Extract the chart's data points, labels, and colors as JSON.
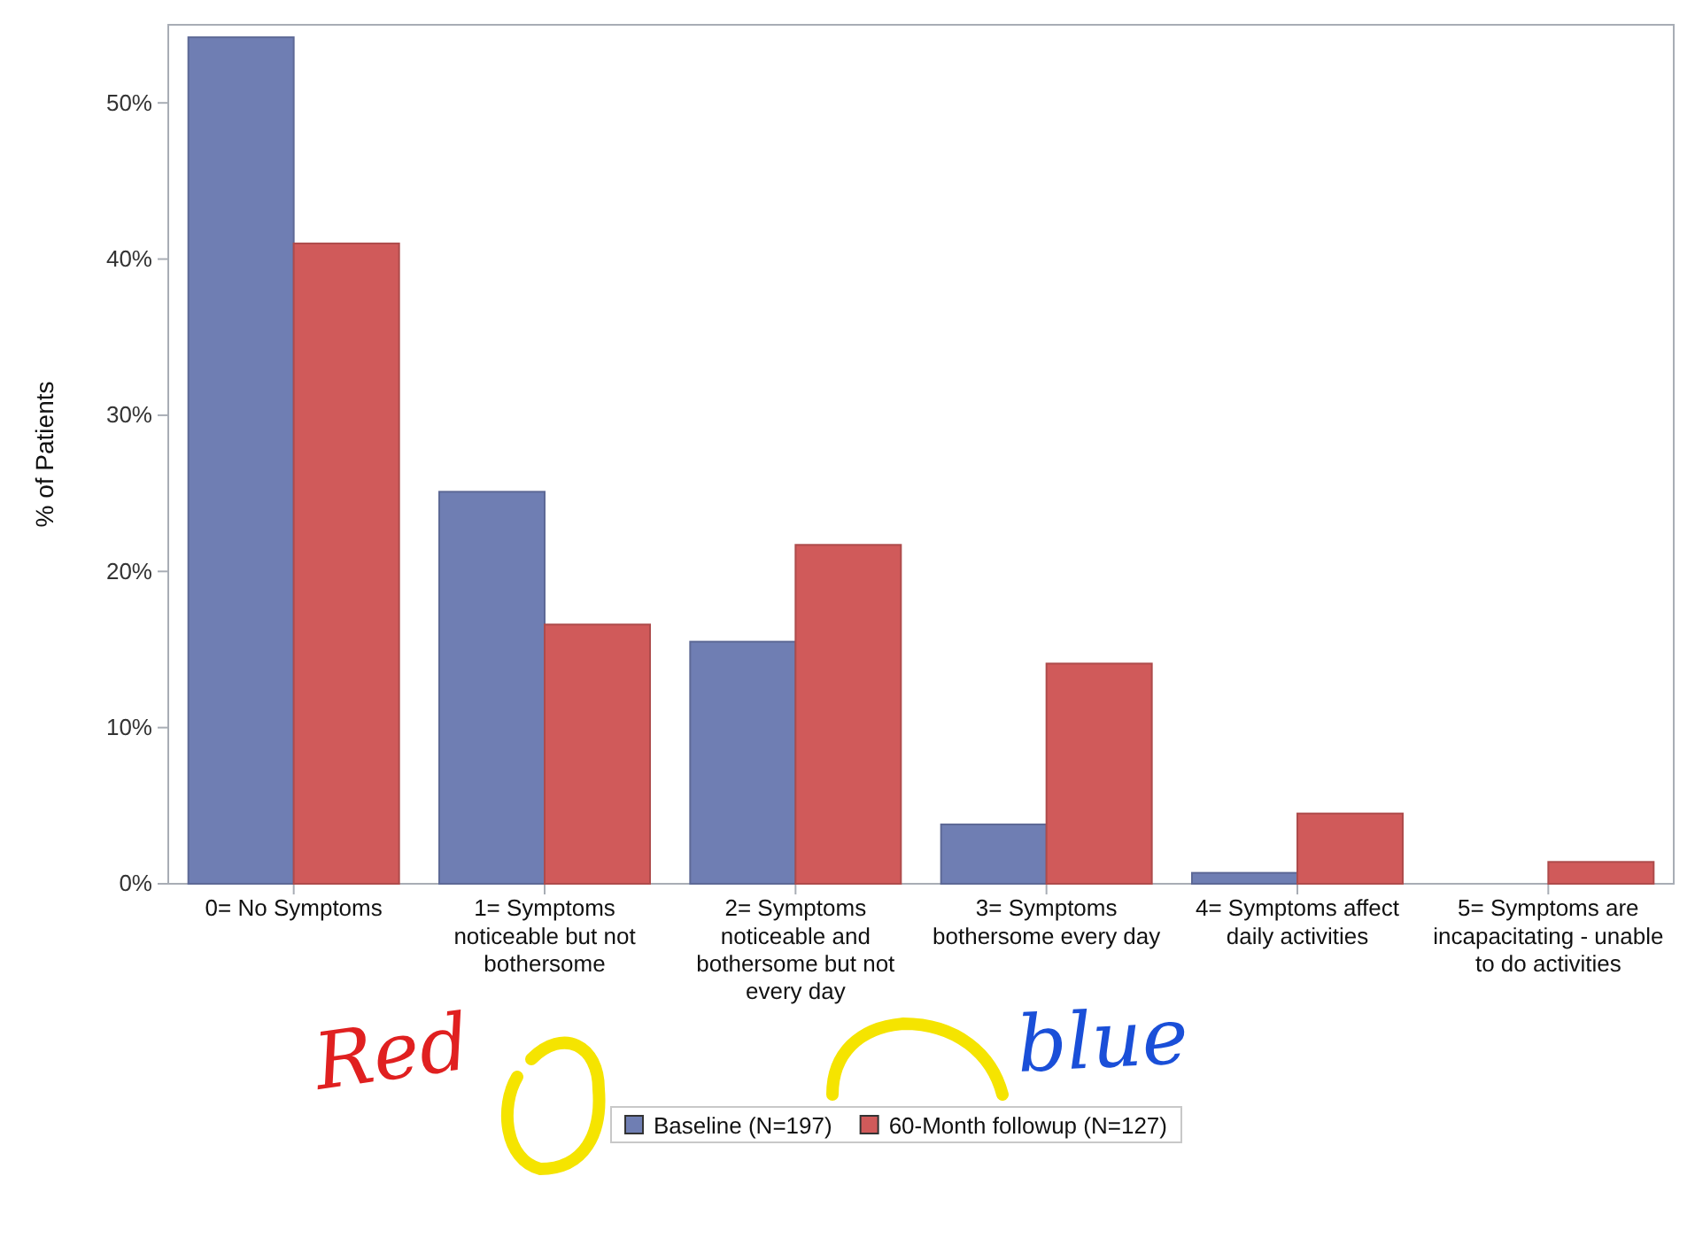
{
  "chart_data": {
    "type": "bar",
    "ylabel": "% of Patients",
    "categories": [
      "0= No Symptoms",
      "1= Symptoms noticeable but not bothersome",
      "2= Symptoms noticeable and bothersome but not every day",
      "3= Symptoms bothersome every day",
      "4= Symptoms affect daily activities",
      "5= Symptoms are incapacitating - unable to do activities"
    ],
    "series": [
      {
        "name": "Baseline (N=197)",
        "color": "#6f7eb3",
        "values": [
          54.2,
          25.1,
          15.5,
          3.8,
          0.7,
          0
        ]
      },
      {
        "name": "60-Month followup (N=127)",
        "color": "#d05a5a",
        "values": [
          41.0,
          16.6,
          21.7,
          14.1,
          4.5,
          1.4
        ]
      }
    ],
    "ylim": [
      0,
      55
    ],
    "yticks": [
      {
        "value": 0,
        "label": "0%"
      },
      {
        "value": 10,
        "label": "10%"
      },
      {
        "value": 20,
        "label": "20%"
      },
      {
        "value": 30,
        "label": "30%"
      },
      {
        "value": 40,
        "label": "40%"
      },
      {
        "value": 50,
        "label": "50%"
      }
    ],
    "grid": false,
    "legend": "bottom",
    "annotations": [
      "Red",
      "blue"
    ]
  }
}
